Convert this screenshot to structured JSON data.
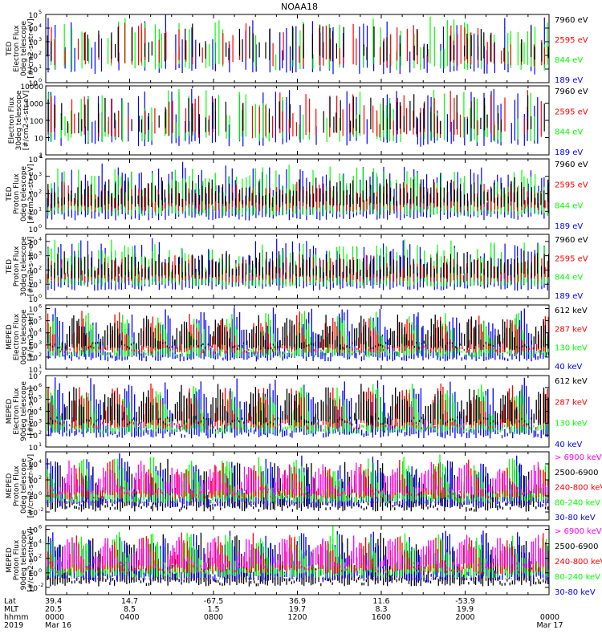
{
  "title": "NOAA18",
  "colors": {
    "black": "#000000",
    "red": "#ff0000",
    "green": "#00ff00",
    "blue": "#0000ff",
    "magenta": "#ff00ff",
    "darkred": "#cc0000"
  },
  "chart_data": [
    {
      "type": "line",
      "ylabel_lines": [
        "TED",
        "Electron Flux",
        "0deg telescope",
        "[#/cm2-s-str-eV]"
      ],
      "yticks": [
        {
          "exp": "0"
        },
        {
          "exp": "1"
        },
        {
          "exp": "2"
        },
        {
          "exp": "3"
        },
        {
          "exp": "4"
        },
        {
          "exp": "5"
        }
      ],
      "ylog_range": [
        0,
        5
      ],
      "legend": [
        {
          "label": "7960 eV",
          "color": "#000000"
        },
        {
          "label": "2595 eV",
          "color": "#ff0000"
        },
        {
          "label": "844 eV",
          "color": "#00ff00"
        },
        {
          "label": "189 eV",
          "color": "#0000ff"
        }
      ]
    },
    {
      "type": "line",
      "ylabel_lines": [
        "Electron Flux",
        "30deg telescope",
        "[#/cm2-s-str-eV]"
      ],
      "yticks": [
        {
          "plain": "1"
        },
        {
          "plain": "10"
        },
        {
          "plain": "100"
        },
        {
          "plain": "1000"
        },
        {
          "plain": "10000"
        }
      ],
      "ylog_range": [
        0,
        4
      ],
      "legend": [
        {
          "label": "7960 eV",
          "color": "#000000"
        },
        {
          "label": "2595 eV",
          "color": "#ff0000"
        },
        {
          "label": "844 eV",
          "color": "#00ff00"
        },
        {
          "label": "189 eV",
          "color": "#0000ff"
        }
      ]
    },
    {
      "type": "line",
      "ylabel_lines": [
        "TED",
        "Proton Flux",
        "0deg telescope",
        "[#/cm2-s-str-eV]"
      ],
      "yticks": [
        {
          "exp": "0"
        },
        {
          "exp": "1"
        },
        {
          "exp": "2"
        },
        {
          "exp": "3"
        },
        {
          "exp": "4"
        }
      ],
      "ylog_range": [
        0,
        4
      ],
      "legend": [
        {
          "label": "7960 eV",
          "color": "#000000"
        },
        {
          "label": "2595 eV",
          "color": "#ff0000"
        },
        {
          "label": "844 eV",
          "color": "#00ff00"
        },
        {
          "label": "189 eV",
          "color": "#0000ff"
        }
      ]
    },
    {
      "type": "line",
      "ylabel_lines": [
        "TED",
        "Proton Flux",
        "30deg telescope",
        "[#/cm2-s-str-eV]"
      ],
      "yticks": [
        {
          "exp": "0"
        },
        {
          "exp": "1"
        },
        {
          "exp": "2"
        },
        {
          "exp": "3"
        },
        {
          "exp": "4"
        }
      ],
      "ylog_range": [
        0,
        4.5
      ],
      "legend": [
        {
          "label": "7960 eV",
          "color": "#000000"
        },
        {
          "label": "2595 eV",
          "color": "#ff0000"
        },
        {
          "label": "844 eV",
          "color": "#00ff00"
        },
        {
          "label": "189 eV",
          "color": "#0000ff"
        }
      ]
    },
    {
      "type": "line",
      "ylabel_lines": [
        "MEPED",
        "Electron Flux",
        "0deg telescope",
        "[#/cm2-s-str]"
      ],
      "yticks": [
        {
          "exp": "1"
        },
        {
          "exp": "2"
        },
        {
          "exp": "3"
        },
        {
          "exp": "4"
        },
        {
          "exp": "5"
        },
        {
          "exp": "6"
        }
      ],
      "ylog_range": [
        1,
        6.3
      ],
      "legend": [
        {
          "label": "612 keV",
          "color": "#000000"
        },
        {
          "label": "287 keV",
          "color": "#ff0000"
        },
        {
          "label": "130 keV",
          "color": "#00ff00"
        },
        {
          "label": "40 keV",
          "color": "#0000ff"
        }
      ]
    },
    {
      "type": "line",
      "ylabel_lines": [
        "MEPED",
        "Electron Flux",
        "90deg telescope",
        "[#/cm2-s-str]"
      ],
      "yticks": [
        {
          "exp": "1"
        },
        {
          "exp": "2"
        },
        {
          "exp": "3"
        },
        {
          "exp": "4"
        },
        {
          "exp": "5"
        },
        {
          "exp": "6"
        },
        {
          "exp": "7"
        }
      ],
      "ylog_range": [
        1,
        7
      ],
      "legend": [
        {
          "label": "612 keV",
          "color": "#000000"
        },
        {
          "label": "287 keV",
          "color": "#ff0000"
        },
        {
          "label": "130 keV",
          "color": "#00ff00"
        },
        {
          "label": "40 keV",
          "color": "#0000ff"
        }
      ]
    },
    {
      "type": "line",
      "ylabel_lines": [
        "MEPED",
        "Proton Flux",
        "0deg telescope",
        "[#/cm2-s-str-keV]"
      ],
      "yticks": [
        {
          "exp": "-2"
        },
        {
          "exp": "0"
        },
        {
          "exp": "2"
        },
        {
          "exp": "4"
        }
      ],
      "ylog_range": [
        -3,
        5.5
      ],
      "legend": [
        {
          "label": "> 6900 keV",
          "color": "#ff00ff"
        },
        {
          "label": "2500-6900",
          "color": "#000000"
        },
        {
          "label": "240-800 keV",
          "color": "#ff0000"
        },
        {
          "label": "80-240 keV",
          "color": "#00ff00"
        },
        {
          "label": "30-80 keV",
          "color": "#0000ff"
        }
      ]
    },
    {
      "type": "line",
      "ylabel_lines": [
        "MEPED",
        "Proton Flux",
        "90deg telescope",
        "[#/cm2-s-str-keV]"
      ],
      "yticks": [
        {
          "exp": "-2"
        },
        {
          "exp": "0"
        },
        {
          "exp": "2"
        },
        {
          "exp": "4"
        },
        {
          "exp": "6"
        }
      ],
      "ylog_range": [
        -3,
        6.5
      ],
      "legend": [
        {
          "label": "> 6900 keV",
          "color": "#ff00ff"
        },
        {
          "label": "2500-6900",
          "color": "#000000"
        },
        {
          "label": "240-800 keV",
          "color": "#ff0000"
        },
        {
          "label": "80-240 keV",
          "color": "#00ff00"
        },
        {
          "label": "30-80 keV",
          "color": "#0000ff"
        }
      ]
    }
  ],
  "xaxis": {
    "row_labels": [
      "Lat",
      "MLT",
      "hhmm",
      "2019"
    ],
    "ticks": [
      {
        "lat": "39.4",
        "mlt": "20.5",
        "hhmm": "0000",
        "date": "Mar 16"
      },
      {
        "lat": "14.7",
        "mlt": "8.5",
        "hhmm": "0400",
        "date": ""
      },
      {
        "lat": "-67.5",
        "mlt": "1.5",
        "hhmm": "0800",
        "date": ""
      },
      {
        "lat": "36.9",
        "mlt": "19.7",
        "hhmm": "1200",
        "date": ""
      },
      {
        "lat": "11.6",
        "mlt": "8.3",
        "hhmm": "1600",
        "date": ""
      },
      {
        "lat": "-53.9",
        "mlt": "19.9",
        "hhmm": "2000",
        "date": ""
      },
      {
        "lat": "",
        "mlt": "",
        "hhmm": "0000",
        "date": "Mar 17"
      }
    ]
  }
}
